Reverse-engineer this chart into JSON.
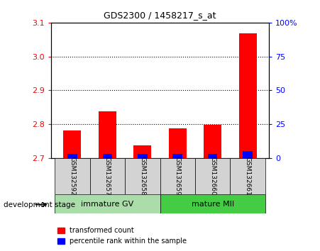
{
  "title": "GDS2300 / 1458217_s_at",
  "samples": [
    "GSM132592",
    "GSM132657",
    "GSM132658",
    "GSM132659",
    "GSM132660",
    "GSM132661"
  ],
  "red_heights": [
    0.082,
    0.138,
    0.038,
    0.088,
    0.098,
    0.368
  ],
  "blue_heights": [
    0.013,
    0.013,
    0.013,
    0.013,
    0.013,
    0.022
  ],
  "ymin": 2.7,
  "ymax": 3.1,
  "yticks": [
    2.7,
    2.8,
    2.9,
    3.0,
    3.1
  ],
  "right_yticks": [
    0,
    25,
    50,
    75,
    100
  ],
  "right_ytick_labels": [
    "0",
    "25",
    "50",
    "75",
    "100%"
  ],
  "groups": [
    {
      "label": "immature GV",
      "start": 0,
      "end": 3,
      "color": "#aaddaa"
    },
    {
      "label": "mature MII",
      "start": 3,
      "end": 6,
      "color": "#44cc44"
    }
  ],
  "group_label": "development stage",
  "legend_red": "transformed count",
  "legend_blue": "percentile rank within the sample",
  "bar_bottom": 2.7,
  "bar_width": 0.5,
  "plot_bg": "#ffffff"
}
